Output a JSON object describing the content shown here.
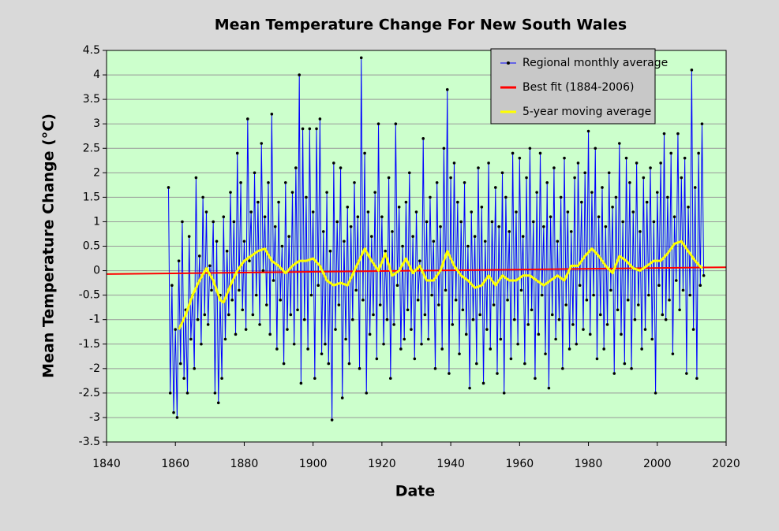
{
  "chart_data": {
    "type": "line",
    "title": "Mean Temperature Change For New South Wales",
    "x_label": "Date",
    "y_label": "Mean  Temperature  Change  (°C)",
    "xlim": [
      1840,
      2020
    ],
    "xticks": [
      1840,
      1860,
      1880,
      1900,
      1920,
      1940,
      1960,
      1980,
      2000,
      2020
    ],
    "ylim": [
      -3.5,
      4.5
    ],
    "yticks": [
      4.5,
      4,
      3.5,
      3,
      2.5,
      2,
      1.5,
      1,
      0.5,
      0,
      -0.5,
      -1,
      -1.5,
      -2,
      -2.5,
      -3,
      -3.5
    ],
    "grid": true,
    "legend": "upper right",
    "series": [
      {
        "name": "Regional monthly average",
        "color": "#0000ff",
        "markers": true,
        "x": [
          1858,
          1858.5,
          1859,
          1859.5,
          1860,
          1860.5,
          1861,
          1861.5,
          1862,
          1862.5,
          1863,
          1863.5,
          1864,
          1864.5,
          1865,
          1865.5,
          1866,
          1866.5,
          1867,
          1867.5,
          1868,
          1868.5,
          1869,
          1869.5,
          1870,
          1870.5,
          1871,
          1871.5,
          1872,
          1872.5,
          1873,
          1873.5,
          1874,
          1874.5,
          1875,
          1875.5,
          1876,
          1876.5,
          1877,
          1877.5,
          1878,
          1878.5,
          1879,
          1879.5,
          1880,
          1880.5,
          1881,
          1881.5,
          1882,
          1882.5,
          1883,
          1883.5,
          1884,
          1884.5,
          1885,
          1885.5,
          1886,
          1886.5,
          1887,
          1887.5,
          1888,
          1888.5,
          1889,
          1889.5,
          1890,
          1890.5,
          1891,
          1891.5,
          1892,
          1892.5,
          1893,
          1893.5,
          1894,
          1894.5,
          1895,
          1895.5,
          1896,
          1896.5,
          1897,
          1897.5,
          1898,
          1898.5,
          1899,
          1899.5,
          1900,
          1900.5,
          1901,
          1901.5,
          1902,
          1902.5,
          1903,
          1903.5,
          1904,
          1904.5,
          1905,
          1905.5,
          1906,
          1906.5,
          1907,
          1907.5,
          1908,
          1908.5,
          1909,
          1909.5,
          1910,
          1910.5,
          1911,
          1911.5,
          1912,
          1912.5,
          1913,
          1913.5,
          1914,
          1914.5,
          1915,
          1915.5,
          1916,
          1916.5,
          1917,
          1917.5,
          1918,
          1918.5,
          1919,
          1919.5,
          1920,
          1920.5,
          1921,
          1921.5,
          1922,
          1922.5,
          1923,
          1923.5,
          1924,
          1924.5,
          1925,
          1925.5,
          1926,
          1926.5,
          1927,
          1927.5,
          1928,
          1928.5,
          1929,
          1929.5,
          1930,
          1930.5,
          1931,
          1931.5,
          1932,
          1932.5,
          1933,
          1933.5,
          1934,
          1934.5,
          1935,
          1935.5,
          1936,
          1936.5,
          1937,
          1937.5,
          1938,
          1938.5,
          1939,
          1939.5,
          1940,
          1940.5,
          1941,
          1941.5,
          1942,
          1942.5,
          1943,
          1943.5,
          1944,
          1944.5,
          1945,
          1945.5,
          1946,
          1946.5,
          1947,
          1947.5,
          1948,
          1948.5,
          1949,
          1949.5,
          1950,
          1950.5,
          1951,
          1951.5,
          1952,
          1952.5,
          1953,
          1953.5,
          1954,
          1954.5,
          1955,
          1955.5,
          1956,
          1956.5,
          1957,
          1957.5,
          1958,
          1958.5,
          1959,
          1959.5,
          1960,
          1960.5,
          1961,
          1961.5,
          1962,
          1962.5,
          1963,
          1963.5,
          1964,
          1964.5,
          1965,
          1965.5,
          1966,
          1966.5,
          1967,
          1967.5,
          1968,
          1968.5,
          1969,
          1969.5,
          1970,
          1970.5,
          1971,
          1971.5,
          1972,
          1972.5,
          1973,
          1973.5,
          1974,
          1974.5,
          1975,
          1975.5,
          1976,
          1976.5,
          1977,
          1977.5,
          1978,
          1978.5,
          1979,
          1979.5,
          1980,
          1980.5,
          1981,
          1981.5,
          1982,
          1982.5,
          1983,
          1983.5,
          1984,
          1984.5,
          1985,
          1985.5,
          1986,
          1986.5,
          1987,
          1987.5,
          1988,
          1988.5,
          1989,
          1989.5,
          1990,
          1990.5,
          1991,
          1991.5,
          1992,
          1992.5,
          1993,
          1993.5,
          1994,
          1994.5,
          1995,
          1995.5,
          1996,
          1996.5,
          1997,
          1997.5,
          1998,
          1998.5,
          1999,
          1999.5,
          2000,
          2000.5,
          2001,
          2001.5,
          2002,
          2002.5,
          2003,
          2003.5,
          2004,
          2004.5,
          2005,
          2005.5,
          2006,
          2006.5,
          2007,
          2007.5,
          2008,
          2008.5,
          2009,
          2009.5,
          2010,
          2010.5,
          2011,
          2011.5,
          2012,
          2012.5,
          2013,
          2013.5
        ],
        "values": [
          1.7,
          -2.5,
          -0.3,
          -2.9,
          -1.2,
          -3.0,
          0.2,
          -1.9,
          1.0,
          -2.2,
          -0.8,
          -2.5,
          0.7,
          -1.4,
          -0.5,
          -2.0,
          1.9,
          -1.0,
          0.3,
          -1.5,
          1.5,
          -0.9,
          1.2,
          -1.1,
          0.1,
          -0.4,
          1.0,
          -2.5,
          0.6,
          -2.7,
          -0.5,
          -2.2,
          1.1,
          -1.4,
          0.4,
          -0.9,
          1.6,
          -0.6,
          1.0,
          -1.3,
          2.4,
          -0.4,
          1.8,
          -0.8,
          0.6,
          -1.2,
          3.1,
          0.2,
          1.2,
          -0.9,
          2.0,
          -0.5,
          1.4,
          -1.1,
          2.6,
          0.0,
          1.1,
          -0.7,
          1.8,
          -1.3,
          3.2,
          -0.2,
          0.9,
          -1.6,
          1.4,
          -0.6,
          0.5,
          -1.9,
          1.8,
          -1.2,
          0.7,
          -0.9,
          1.6,
          -1.5,
          2.1,
          -0.8,
          4.0,
          -2.3,
          2.9,
          -1.0,
          1.5,
          -1.6,
          2.9,
          -0.5,
          1.2,
          -2.2,
          2.9,
          -0.3,
          3.1,
          -1.7,
          0.8,
          -1.5,
          1.6,
          -1.9,
          0.4,
          -3.05,
          2.2,
          -1.2,
          1.0,
          -0.7,
          2.1,
          -2.6,
          0.6,
          -1.4,
          1.3,
          -1.9,
          0.9,
          -1.0,
          1.8,
          -0.4,
          1.1,
          -2.0,
          4.35,
          -0.6,
          2.4,
          -2.5,
          1.2,
          -1.3,
          0.7,
          -0.9,
          1.6,
          -1.8,
          3.0,
          -0.7,
          1.1,
          -1.5,
          0.4,
          -1.0,
          1.9,
          -2.2,
          0.8,
          -1.1,
          3.0,
          -0.3,
          1.3,
          -1.6,
          0.5,
          -1.4,
          1.4,
          -0.8,
          2.0,
          -1.2,
          0.7,
          -1.8,
          1.2,
          -0.6,
          0.2,
          -1.5,
          2.7,
          -0.9,
          1.0,
          -1.4,
          1.5,
          -0.5,
          0.6,
          -2.0,
          1.8,
          -0.7,
          0.9,
          -1.6,
          2.5,
          -0.4,
          3.7,
          -2.1,
          1.9,
          -1.1,
          2.2,
          -0.6,
          1.4,
          -1.7,
          1.0,
          -0.8,
          1.8,
          -1.3,
          0.5,
          -2.4,
          1.2,
          -1.0,
          0.7,
          -1.9,
          2.1,
          -0.9,
          1.3,
          -2.3,
          0.6,
          -1.2,
          2.2,
          -1.6,
          1.0,
          -0.7,
          1.7,
          -2.1,
          0.9,
          -1.4,
          2.0,
          -2.5,
          1.5,
          -0.6,
          0.8,
          -1.8,
          2.4,
          -1.0,
          1.2,
          -1.5,
          2.3,
          -0.4,
          0.7,
          -1.9,
          1.9,
          -1.1,
          2.5,
          -0.8,
          1.0,
          -2.2,
          1.6,
          -1.3,
          2.4,
          -0.5,
          0.9,
          -1.7,
          1.8,
          -2.4,
          1.1,
          -0.9,
          2.1,
          -1.4,
          0.6,
          -1.0,
          1.5,
          -2.0,
          2.3,
          -0.7,
          1.2,
          -1.6,
          0.8,
          -1.1,
          1.9,
          -1.5,
          2.2,
          -0.3,
          1.4,
          -1.2,
          2.0,
          -0.6,
          2.85,
          -1.3,
          1.6,
          -0.5,
          2.5,
          -1.8,
          1.1,
          -0.9,
          1.7,
          -1.6,
          0.9,
          -1.1,
          2.0,
          -0.4,
          1.3,
          -2.1,
          1.5,
          -0.8,
          2.6,
          -1.3,
          1.0,
          -1.9,
          2.3,
          -0.6,
          1.8,
          -2.0,
          1.2,
          -1.0,
          2.2,
          -0.7,
          0.8,
          -1.6,
          1.9,
          -1.2,
          1.4,
          -0.5,
          2.1,
          -1.4,
          1.0,
          -2.5,
          1.6,
          -0.3,
          2.2,
          -0.9,
          2.8,
          -1.0,
          1.5,
          -0.6,
          2.4,
          -1.7,
          1.1,
          -0.2,
          2.8,
          -0.8,
          1.9,
          -0.4,
          2.3,
          -2.1,
          1.3,
          -0.5,
          4.1,
          -1.2,
          1.7,
          -2.2,
          2.4,
          -0.3,
          3.0,
          -0.1
        ]
      },
      {
        "name": "Best fit (1884-2006)",
        "color": "#ff0000",
        "markers": false,
        "x": [
          1840,
          2020
        ],
        "values": [
          -0.07,
          0.07
        ]
      },
      {
        "name": "5-year moving average",
        "color": "#ffff00",
        "markers": false,
        "x": [
          1861,
          1863,
          1865,
          1867,
          1869,
          1871,
          1873,
          1874,
          1876,
          1878,
          1880,
          1882,
          1884,
          1886,
          1888,
          1890,
          1892,
          1894,
          1896,
          1898,
          1900,
          1902,
          1904,
          1906,
          1908,
          1910,
          1912,
          1914,
          1915,
          1917,
          1919,
          1921,
          1923,
          1925,
          1927,
          1929,
          1931,
          1933,
          1935,
          1937,
          1939,
          1941,
          1943,
          1945,
          1947,
          1949,
          1951,
          1953,
          1955,
          1957,
          1959,
          1961,
          1963,
          1965,
          1967,
          1969,
          1971,
          1973,
          1975,
          1977,
          1979,
          1981,
          1983,
          1985,
          1987,
          1989,
          1991,
          1993,
          1995,
          1997,
          1999,
          2001,
          2003,
          2005,
          2007,
          2009,
          2011,
          2013
        ],
        "values": [
          -1.2,
          -0.9,
          -0.5,
          -0.2,
          0.05,
          -0.2,
          -0.6,
          -0.65,
          -0.3,
          0.0,
          0.2,
          0.3,
          0.4,
          0.45,
          0.2,
          0.1,
          -0.05,
          0.1,
          0.2,
          0.2,
          0.25,
          0.1,
          -0.2,
          -0.3,
          -0.25,
          -0.3,
          0.0,
          0.3,
          0.45,
          0.2,
          0.0,
          0.35,
          -0.1,
          0.0,
          0.25,
          -0.05,
          0.1,
          -0.2,
          -0.2,
          0.0,
          0.4,
          0.1,
          -0.1,
          -0.2,
          -0.35,
          -0.3,
          -0.1,
          -0.3,
          -0.1,
          -0.2,
          -0.2,
          -0.1,
          -0.1,
          -0.2,
          -0.3,
          -0.2,
          -0.1,
          -0.2,
          0.1,
          0.1,
          0.3,
          0.45,
          0.3,
          0.1,
          -0.05,
          0.3,
          0.2,
          0.05,
          0.0,
          0.1,
          0.2,
          0.2,
          0.35,
          0.55,
          0.6,
          0.4,
          0.2,
          0.05
        ]
      }
    ]
  }
}
